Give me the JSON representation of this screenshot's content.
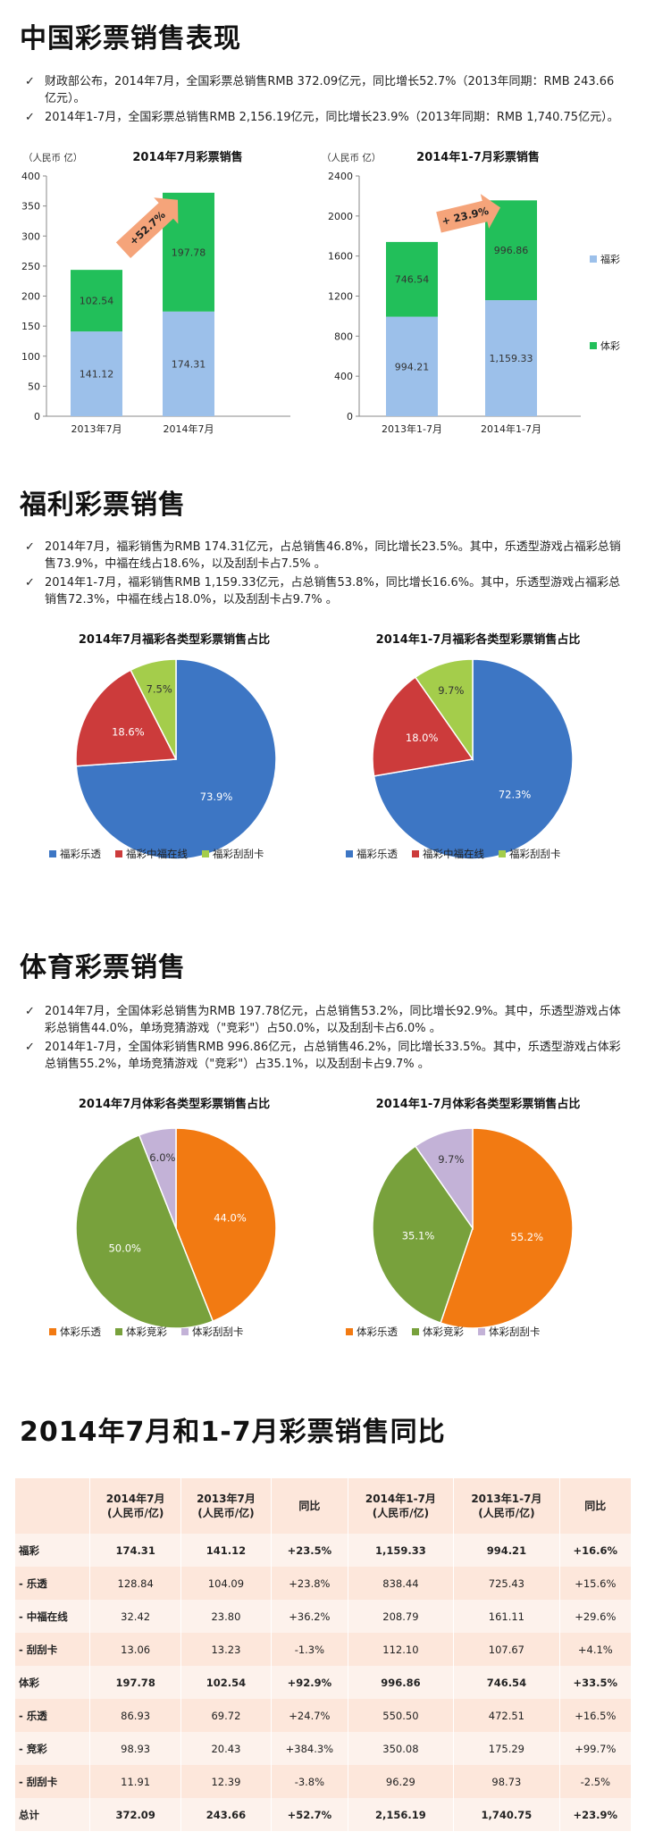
{
  "sections": {
    "s1_title": "中国彩票销售表现",
    "s1_bullets": [
      "财政部公布，2014年7月，全国彩票总销售RMB 372.09亿元，同比增长52.7%（2013年同期：RMB 243.66亿元）。",
      "2014年1-7月，全国彩票总销售RMB 2,156.19亿元，同比增长23.9%（2013年同期：RMB 1,740.75亿元）。"
    ],
    "s2_title": "福利彩票销售",
    "s2_bullets": [
      "2014年7月，福彩销售为RMB 174.31亿元，占总销售46.8%，同比增长23.5%。其中，乐透型游戏占福彩总销售73.9%，中福在线占18.6%，以及刮刮卡占7.5% 。",
      "2014年1-7月，福彩销售RMB 1,159.33亿元，占总销售53.8%，同比增长16.6%。其中，乐透型游戏占福彩总销售72.3%，中福在线占18.0%，以及刮刮卡占9.7% 。"
    ],
    "s3_title": "体育彩票销售",
    "s3_bullets": [
      "2014年7月，全国体彩总销售为RMB 197.78亿元，占总销售53.2%，同比增长92.9%。其中，乐透型游戏占体彩总销售44.0%，单场竞猜游戏（\"竞彩\"）占50.0%，以及刮刮卡占6.0% 。",
      "2014年1-7月，全国体彩销售RMB 996.86亿元，占总销售46.2%，同比增长33.5%。其中，乐透型游戏占体彩总销售55.2%，单场竞猜游戏（\"竞彩\"）占35.1%，以及刮刮卡占9.7% 。"
    ],
    "s4_title": "2014年7月和1-7月彩票销售同比",
    "check_glyph": "✓"
  },
  "colors": {
    "welfare": "#9cc0ea",
    "sports": "#22bf5a",
    "arrow": "#f5a47a",
    "pie_blue": "#3d76c4",
    "pie_red": "#cc3b3b",
    "pie_lgreen": "#a4cd4b",
    "pie_orange": "#f27a12",
    "pie_olive": "#78a13c",
    "pie_lilac": "#c3b2d7",
    "table_dark": "#fde7db",
    "table_light": "#fdf2ec"
  },
  "chart_data": [
    {
      "type": "bar",
      "stacked": true,
      "title": "2014年7月彩票销售",
      "unit_label": "（人民币 亿）",
      "categories": [
        "2013年7月",
        "2014年7月"
      ],
      "series": [
        {
          "name": "福彩",
          "values": [
            141.12,
            174.31
          ]
        },
        {
          "name": "体彩",
          "values": [
            102.54,
            197.78
          ]
        }
      ],
      "ylim": [
        0,
        400
      ],
      "yticks": [
        0,
        50,
        100,
        150,
        200,
        250,
        300,
        350,
        400
      ],
      "annotation": "+52.7%",
      "legend": "none"
    },
    {
      "type": "bar",
      "stacked": true,
      "title": "2014年1-7月彩票销售",
      "unit_label": "（人民币 亿）",
      "categories": [
        "2013年1-7月",
        "2014年1-7月"
      ],
      "series": [
        {
          "name": "福彩",
          "values": [
            994.21,
            1159.33
          ]
        },
        {
          "name": "体彩",
          "values": [
            746.54,
            996.86
          ]
        }
      ],
      "ylim": [
        0,
        2400
      ],
      "yticks": [
        0,
        400,
        800,
        1200,
        1600,
        2000,
        2400
      ],
      "annotation": "+ 23.9%",
      "legend": "right"
    },
    {
      "type": "pie",
      "title": "2014年7月福彩各类型彩票销售占比",
      "labels": [
        "福彩乐透",
        "福彩中福在线",
        "福彩刮刮卡"
      ],
      "values": [
        73.9,
        18.6,
        7.5
      ],
      "display": [
        "73.9%",
        "18.6%",
        "7.5%"
      ],
      "legend": "bottom"
    },
    {
      "type": "pie",
      "title": "2014年1-7月福彩各类型彩票销售占比",
      "labels": [
        "福彩乐透",
        "福彩中福在线",
        "福彩刮刮卡"
      ],
      "values": [
        72.3,
        18.0,
        9.7
      ],
      "display": [
        "72.3%",
        "18.0%",
        "9.7%"
      ],
      "legend": "bottom"
    },
    {
      "type": "pie",
      "title": "2014年7月体彩各类型彩票销售占比",
      "labels": [
        "体彩乐透",
        "体彩竞彩",
        "体彩刮刮卡"
      ],
      "values": [
        44.0,
        50.0,
        6.0
      ],
      "display": [
        "44.0%",
        "50.0%",
        "6.0%"
      ],
      "legend": "bottom"
    },
    {
      "type": "pie",
      "title": "2014年1-7月体彩各类型彩票销售占比",
      "labels": [
        "体彩乐透",
        "体彩竞彩",
        "体彩刮刮卡"
      ],
      "values": [
        55.2,
        35.1,
        9.7
      ],
      "display": [
        "55.2%",
        "35.1%",
        "9.7%"
      ],
      "legend": "bottom"
    },
    {
      "type": "table",
      "header": [
        "",
        "2014年7月\n(人民币/亿)",
        "2013年7月\n(人民币/亿)",
        "同比",
        "2014年1-7月\n(人民币/亿)",
        "2013年1-7月\n(人民币/亿)",
        "同比"
      ],
      "rows": [
        [
          "福彩",
          "174.31",
          "141.12",
          "+23.5%",
          "1,159.33",
          "994.21",
          "+16.6%"
        ],
        [
          "- 乐透",
          "128.84",
          "104.09",
          "+23.8%",
          "838.44",
          "725.43",
          "+15.6%"
        ],
        [
          "- 中福在线",
          "32.42",
          "23.80",
          "+36.2%",
          "208.79",
          "161.11",
          "+29.6%"
        ],
        [
          "- 刮刮卡",
          "13.06",
          "13.23",
          "-1.3%",
          "112.10",
          "107.67",
          "+4.1%"
        ],
        [
          "体彩",
          "197.78",
          "102.54",
          "+92.9%",
          "996.86",
          "746.54",
          "+33.5%"
        ],
        [
          "- 乐透",
          "86.93",
          "69.72",
          "+24.7%",
          "550.50",
          "472.51",
          "+16.5%"
        ],
        [
          "- 竞彩",
          "98.93",
          "20.43",
          "+384.3%",
          "350.08",
          "175.29",
          "+99.7%"
        ],
        [
          "- 刮刮卡",
          "11.91",
          "12.39",
          "-3.8%",
          "96.29",
          "98.73",
          "-2.5%"
        ],
        [
          "总计",
          "372.09",
          "243.66",
          "+52.7%",
          "2,156.19",
          "1,740.75",
          "+23.9%"
        ]
      ],
      "bold_rows": [
        0,
        4,
        8
      ]
    }
  ]
}
